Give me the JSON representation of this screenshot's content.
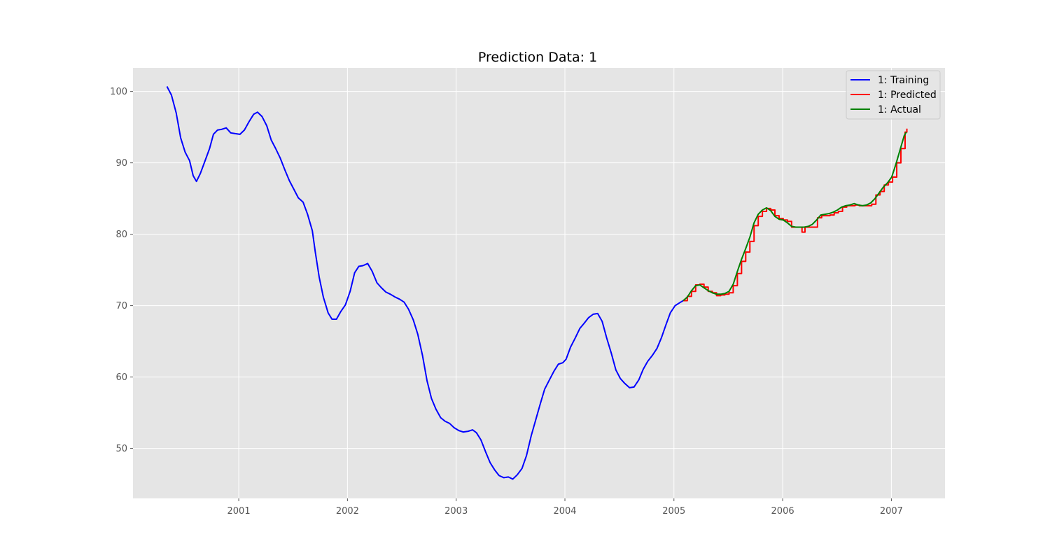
{
  "chart_data": {
    "type": "line",
    "title": "Prediction Data: 1",
    "xlabel": "",
    "ylabel": "",
    "x_scale": "date",
    "xlim": [
      "2000-01-12",
      "2007-06-30"
    ],
    "ylim": [
      43,
      103.3
    ],
    "x_ticks": [
      {
        "date": "2001-01-01",
        "label": "2001"
      },
      {
        "date": "2002-01-01",
        "label": "2002"
      },
      {
        "date": "2003-01-01",
        "label": "2003"
      },
      {
        "date": "2004-01-01",
        "label": "2004"
      },
      {
        "date": "2005-01-01",
        "label": "2005"
      },
      {
        "date": "2006-01-01",
        "label": "2006"
      },
      {
        "date": "2007-01-01",
        "label": "2007"
      }
    ],
    "y_ticks": [
      {
        "value": 50,
        "label": "50"
      },
      {
        "value": 60,
        "label": "60"
      },
      {
        "value": 70,
        "label": "70"
      },
      {
        "value": 80,
        "label": "80"
      },
      {
        "value": 90,
        "label": "90"
      },
      {
        "value": 100,
        "label": "100"
      }
    ],
    "grid": true,
    "legend_position": "top-right",
    "series": [
      {
        "name": "1: Training",
        "color": "#0000ff",
        "step": false,
        "points": [
          [
            "2000-05-05",
            100.7
          ],
          [
            "2000-05-20",
            99.5
          ],
          [
            "2000-06-05",
            97.0
          ],
          [
            "2000-06-20",
            93.5
          ],
          [
            "2000-07-05",
            91.5
          ],
          [
            "2000-07-20",
            90.3
          ],
          [
            "2000-08-01",
            88.2
          ],
          [
            "2000-08-12",
            87.4
          ],
          [
            "2000-08-25",
            88.5
          ],
          [
            "2000-09-10",
            90.3
          ],
          [
            "2000-09-25",
            92.0
          ],
          [
            "2000-10-08",
            94.0
          ],
          [
            "2000-10-22",
            94.6
          ],
          [
            "2000-11-05",
            94.7
          ],
          [
            "2000-11-20",
            94.9
          ],
          [
            "2000-12-05",
            94.2
          ],
          [
            "2000-12-20",
            94.1
          ],
          [
            "2001-01-05",
            94.0
          ],
          [
            "2001-01-20",
            94.6
          ],
          [
            "2001-02-05",
            95.8
          ],
          [
            "2001-02-20",
            96.8
          ],
          [
            "2001-03-05",
            97.1
          ],
          [
            "2001-03-20",
            96.5
          ],
          [
            "2001-04-05",
            95.2
          ],
          [
            "2001-04-20",
            93.2
          ],
          [
            "2001-05-05",
            92.0
          ],
          [
            "2001-05-20",
            90.7
          ],
          [
            "2001-06-05",
            89.0
          ],
          [
            "2001-06-20",
            87.5
          ],
          [
            "2001-07-05",
            86.3
          ],
          [
            "2001-07-20",
            85.1
          ],
          [
            "2001-08-05",
            84.5
          ],
          [
            "2001-08-20",
            82.8
          ],
          [
            "2001-09-05",
            80.5
          ],
          [
            "2001-09-15",
            77.5
          ],
          [
            "2001-09-28",
            74.0
          ],
          [
            "2001-10-12",
            71.2
          ],
          [
            "2001-10-28",
            69.0
          ],
          [
            "2001-11-10",
            68.1
          ],
          [
            "2001-11-25",
            68.1
          ],
          [
            "2001-12-10",
            69.2
          ],
          [
            "2001-12-25",
            70.1
          ],
          [
            "2002-01-10",
            72.0
          ],
          [
            "2002-01-25",
            74.6
          ],
          [
            "2002-02-08",
            75.5
          ],
          [
            "2002-02-22",
            75.6
          ],
          [
            "2002-03-10",
            75.9
          ],
          [
            "2002-03-25",
            74.8
          ],
          [
            "2002-04-10",
            73.2
          ],
          [
            "2002-04-25",
            72.5
          ],
          [
            "2002-05-10",
            71.9
          ],
          [
            "2002-05-25",
            71.6
          ],
          [
            "2002-06-10",
            71.2
          ],
          [
            "2002-06-25",
            70.9
          ],
          [
            "2002-07-10",
            70.5
          ],
          [
            "2002-07-25",
            69.5
          ],
          [
            "2002-08-10",
            68.0
          ],
          [
            "2002-08-25",
            66.0
          ],
          [
            "2002-09-10",
            63.0
          ],
          [
            "2002-09-25",
            59.5
          ],
          [
            "2002-10-10",
            57.0
          ],
          [
            "2002-10-25",
            55.5
          ],
          [
            "2002-11-10",
            54.3
          ],
          [
            "2002-11-25",
            53.8
          ],
          [
            "2002-12-10",
            53.5
          ],
          [
            "2002-12-25",
            52.9
          ],
          [
            "2003-01-10",
            52.5
          ],
          [
            "2003-01-25",
            52.3
          ],
          [
            "2003-02-10",
            52.4
          ],
          [
            "2003-02-25",
            52.6
          ],
          [
            "2003-03-10",
            52.2
          ],
          [
            "2003-03-25",
            51.2
          ],
          [
            "2003-04-10",
            49.5
          ],
          [
            "2003-04-25",
            48.0
          ],
          [
            "2003-05-10",
            47.0
          ],
          [
            "2003-05-25",
            46.2
          ],
          [
            "2003-06-10",
            45.9
          ],
          [
            "2003-06-25",
            46.0
          ],
          [
            "2003-07-10",
            45.7
          ],
          [
            "2003-07-25",
            46.3
          ],
          [
            "2003-08-10",
            47.2
          ],
          [
            "2003-08-25",
            49.0
          ],
          [
            "2003-09-10",
            51.8
          ],
          [
            "2003-09-25",
            54.0
          ],
          [
            "2003-10-10",
            56.2
          ],
          [
            "2003-10-25",
            58.3
          ],
          [
            "2003-11-10",
            59.6
          ],
          [
            "2003-11-25",
            60.8
          ],
          [
            "2003-12-10",
            61.8
          ],
          [
            "2003-12-25",
            62.0
          ],
          [
            "2004-01-05",
            62.5
          ],
          [
            "2004-01-20",
            64.2
          ],
          [
            "2004-02-05",
            65.5
          ],
          [
            "2004-02-20",
            66.8
          ],
          [
            "2004-03-05",
            67.5
          ],
          [
            "2004-03-20",
            68.3
          ],
          [
            "2004-04-05",
            68.8
          ],
          [
            "2004-04-20",
            68.9
          ],
          [
            "2004-05-05",
            67.8
          ],
          [
            "2004-05-20",
            65.5
          ],
          [
            "2004-06-05",
            63.3
          ],
          [
            "2004-06-20",
            61.0
          ],
          [
            "2004-07-05",
            59.8
          ],
          [
            "2004-07-20",
            59.1
          ],
          [
            "2004-08-05",
            58.5
          ],
          [
            "2004-08-20",
            58.6
          ],
          [
            "2004-09-05",
            59.6
          ],
          [
            "2004-09-20",
            61.1
          ],
          [
            "2004-10-05",
            62.2
          ],
          [
            "2004-10-20",
            63.0
          ],
          [
            "2004-11-05",
            64.0
          ],
          [
            "2004-11-20",
            65.5
          ],
          [
            "2004-12-05",
            67.3
          ],
          [
            "2004-12-20",
            69.0
          ],
          [
            "2005-01-05",
            70.0
          ],
          [
            "2005-01-20",
            70.4
          ],
          [
            "2005-02-01",
            70.7
          ]
        ]
      },
      {
        "name": "1: Predicted",
        "color": "#ff0000",
        "step": true,
        "points": [
          [
            "2005-02-01",
            70.7
          ],
          [
            "2005-02-15",
            71.3
          ],
          [
            "2005-03-01",
            72.0
          ],
          [
            "2005-03-15",
            72.9
          ],
          [
            "2005-03-29",
            73.0
          ],
          [
            "2005-04-12",
            72.6
          ],
          [
            "2005-04-26",
            72.0
          ],
          [
            "2005-05-10",
            71.8
          ],
          [
            "2005-05-24",
            71.4
          ],
          [
            "2005-06-07",
            71.5
          ],
          [
            "2005-06-21",
            71.6
          ],
          [
            "2005-07-05",
            71.8
          ],
          [
            "2005-07-19",
            72.8
          ],
          [
            "2005-08-02",
            74.5
          ],
          [
            "2005-08-16",
            76.2
          ],
          [
            "2005-08-30",
            77.5
          ],
          [
            "2005-09-13",
            79.0
          ],
          [
            "2005-09-27",
            81.2
          ],
          [
            "2005-10-11",
            82.5
          ],
          [
            "2005-10-25",
            83.2
          ],
          [
            "2005-11-08",
            83.6
          ],
          [
            "2005-11-22",
            83.4
          ],
          [
            "2005-12-06",
            82.6
          ],
          [
            "2005-12-20",
            82.2
          ],
          [
            "2006-01-03",
            82.0
          ],
          [
            "2006-01-17",
            81.8
          ],
          [
            "2006-01-31",
            81.0
          ],
          [
            "2006-02-14",
            81.0
          ],
          [
            "2006-02-28",
            81.0
          ],
          [
            "2006-03-07",
            80.3
          ],
          [
            "2006-03-17",
            81.0
          ],
          [
            "2006-03-31",
            81.0
          ],
          [
            "2006-04-14",
            81.0
          ],
          [
            "2006-04-28",
            82.3
          ],
          [
            "2006-05-12",
            82.6
          ],
          [
            "2006-05-26",
            82.6
          ],
          [
            "2006-06-09",
            82.7
          ],
          [
            "2006-06-23",
            83.0
          ],
          [
            "2006-07-07",
            83.2
          ],
          [
            "2006-07-21",
            83.8
          ],
          [
            "2006-08-04",
            84.0
          ],
          [
            "2006-08-18",
            84.0
          ],
          [
            "2006-09-01",
            84.1
          ],
          [
            "2006-09-15",
            84.0
          ],
          [
            "2006-09-29",
            84.0
          ],
          [
            "2006-10-13",
            84.0
          ],
          [
            "2006-10-27",
            84.2
          ],
          [
            "2006-11-10",
            85.5
          ],
          [
            "2006-11-24",
            86.0
          ],
          [
            "2006-12-08",
            86.9
          ],
          [
            "2006-12-22",
            87.3
          ],
          [
            "2007-01-05",
            88.0
          ],
          [
            "2007-01-19",
            90.0
          ],
          [
            "2007-02-02",
            92.0
          ],
          [
            "2007-02-16",
            94.3
          ],
          [
            "2007-02-22",
            94.8
          ]
        ]
      },
      {
        "name": "1: Actual",
        "color": "#008000",
        "step": false,
        "points": [
          [
            "2005-02-01",
            70.7
          ],
          [
            "2005-02-15",
            71.2
          ],
          [
            "2005-03-01",
            72.1
          ],
          [
            "2005-03-15",
            72.8
          ],
          [
            "2005-03-29",
            72.9
          ],
          [
            "2005-04-12",
            72.5
          ],
          [
            "2005-04-26",
            72.1
          ],
          [
            "2005-05-10",
            71.8
          ],
          [
            "2005-05-24",
            71.6
          ],
          [
            "2005-06-07",
            71.6
          ],
          [
            "2005-06-21",
            71.7
          ],
          [
            "2005-07-05",
            72.0
          ],
          [
            "2005-07-19",
            73.0
          ],
          [
            "2005-08-02",
            74.8
          ],
          [
            "2005-08-16",
            76.5
          ],
          [
            "2005-08-30",
            78.0
          ],
          [
            "2005-09-13",
            79.6
          ],
          [
            "2005-09-27",
            81.6
          ],
          [
            "2005-10-11",
            82.8
          ],
          [
            "2005-10-25",
            83.4
          ],
          [
            "2005-11-08",
            83.7
          ],
          [
            "2005-11-22",
            83.3
          ],
          [
            "2005-12-06",
            82.5
          ],
          [
            "2005-12-20",
            82.1
          ],
          [
            "2006-01-03",
            82.0
          ],
          [
            "2006-01-17",
            81.6
          ],
          [
            "2006-01-31",
            81.1
          ],
          [
            "2006-02-14",
            81.0
          ],
          [
            "2006-02-28",
            81.0
          ],
          [
            "2006-03-14",
            81.0
          ],
          [
            "2006-03-28",
            81.1
          ],
          [
            "2006-04-11",
            81.4
          ],
          [
            "2006-04-25",
            82.0
          ],
          [
            "2006-05-09",
            82.7
          ],
          [
            "2006-05-23",
            82.8
          ],
          [
            "2006-06-06",
            82.9
          ],
          [
            "2006-06-20",
            83.1
          ],
          [
            "2006-07-04",
            83.4
          ],
          [
            "2006-07-18",
            83.8
          ],
          [
            "2006-08-01",
            84.0
          ],
          [
            "2006-08-15",
            84.1
          ],
          [
            "2006-08-29",
            84.3
          ],
          [
            "2006-09-12",
            84.1
          ],
          [
            "2006-09-26",
            84.0
          ],
          [
            "2006-10-10",
            84.1
          ],
          [
            "2006-10-24",
            84.4
          ],
          [
            "2006-11-07",
            85.0
          ],
          [
            "2006-11-21",
            85.8
          ],
          [
            "2006-12-05",
            86.6
          ],
          [
            "2006-12-19",
            87.2
          ],
          [
            "2007-01-02",
            88.0
          ],
          [
            "2007-01-16",
            89.8
          ],
          [
            "2007-01-30",
            91.8
          ],
          [
            "2007-02-13",
            93.8
          ],
          [
            "2007-02-20",
            94.3
          ]
        ]
      }
    ]
  }
}
